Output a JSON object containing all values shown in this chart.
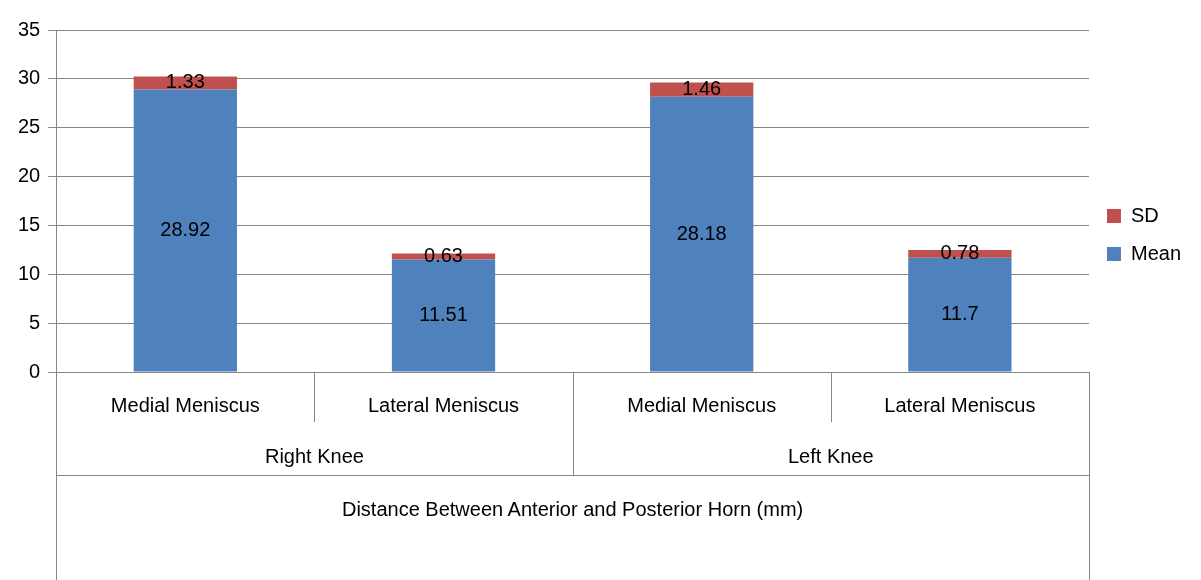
{
  "chart_data": {
    "type": "bar",
    "stacked": true,
    "xlabel": "Distance Between Anterior and Posterior Horn (mm)",
    "categories": [
      "Medial Meniscus",
      "Lateral Meniscus",
      "Medial Meniscus",
      "Lateral Meniscus"
    ],
    "annotations": [
      "Right Knee",
      "Left Knee"
    ],
    "series": [
      {
        "name": "Mean",
        "color": "#4f81bd",
        "values": [
          28.92,
          11.51,
          28.18,
          11.7
        ]
      },
      {
        "name": "SD",
        "color": "#c0504d",
        "values": [
          1.33,
          0.63,
          1.46,
          0.78
        ]
      }
    ],
    "ylim": [
      0,
      35
    ],
    "yticks": [
      0,
      5,
      10,
      15,
      20,
      25,
      30,
      35
    ],
    "grid": "y",
    "legend": "right",
    "data_labels": true
  }
}
